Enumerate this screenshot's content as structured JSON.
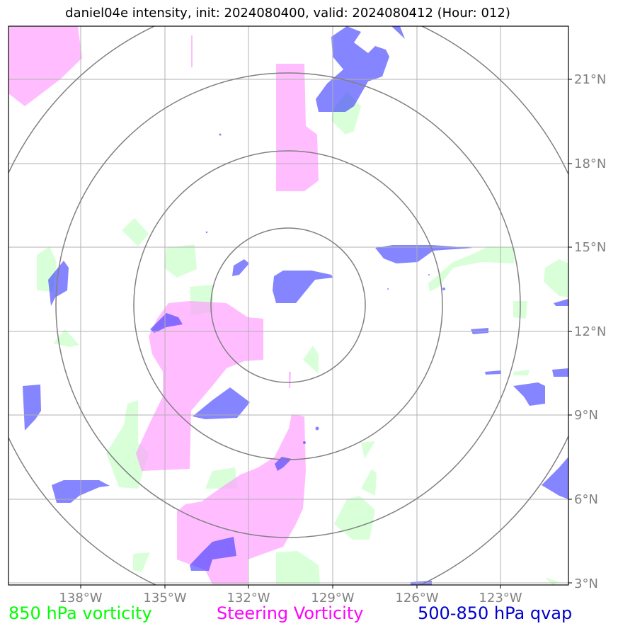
{
  "title": "daniel04e intensity, init: 2024080400, valid: 2024080412 (Hour: 012)",
  "lon_ticks": [
    "138°W",
    "135°W",
    "132°W",
    "129°W",
    "126°W",
    "123°W"
  ],
  "lat_ticks": [
    "21°N",
    "18°N",
    "15°N",
    "12°N",
    "9°N",
    "6°N",
    "3°N"
  ],
  "legend": [
    {
      "label": "850 hPa vorticity",
      "color": "#00ff00"
    },
    {
      "label": "Steering Vorticity",
      "color": "#ff00ff"
    },
    {
      "label": "500-850 hPa qvap",
      "color": "#0000cd"
    }
  ],
  "colors": {
    "vorticity_850": "#ccffcc",
    "steering_vorticity": "#ff99ff",
    "qvap": "#3333ff",
    "grid": "#b0b0b0",
    "range_rings": "#808080"
  }
}
